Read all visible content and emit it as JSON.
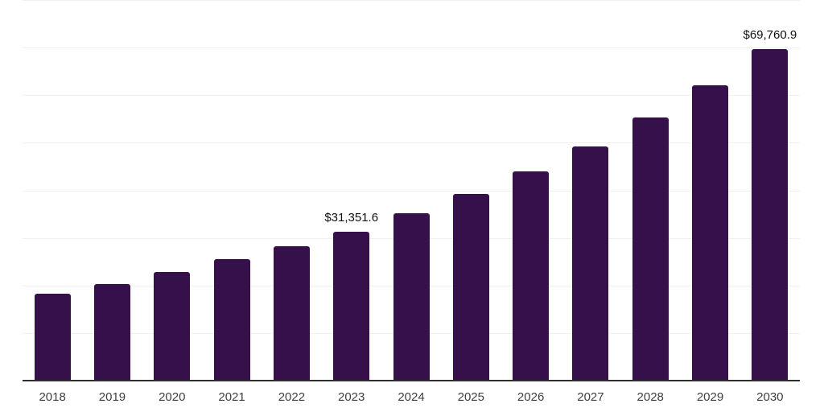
{
  "chart_data": {
    "type": "bar",
    "title": "",
    "xlabel": "",
    "ylabel": "",
    "categories": [
      "2018",
      "2019",
      "2020",
      "2021",
      "2022",
      "2023",
      "2024",
      "2025",
      "2026",
      "2027",
      "2028",
      "2029",
      "2030"
    ],
    "values": [
      18200,
      20300,
      22800,
      25500,
      28200,
      31351.6,
      35200,
      39300,
      44000,
      49300,
      55300,
      62100,
      69760.9
    ],
    "annotations": [
      {
        "category": "2023",
        "index": 5,
        "text": "$31,351.6"
      },
      {
        "category": "2030",
        "index": 12,
        "text": "$69,760.9"
      }
    ],
    "ylim": [
      0,
      80000
    ],
    "grid": {
      "visible": true,
      "interval": 10000
    },
    "legend": "none",
    "colors": {
      "bar": "#36104A",
      "axis_line": "#2e2e2e",
      "gridline": "#f0f0f0",
      "tick_label": "#3f3f3f",
      "data_label": "#111111",
      "background": "#ffffff"
    }
  }
}
